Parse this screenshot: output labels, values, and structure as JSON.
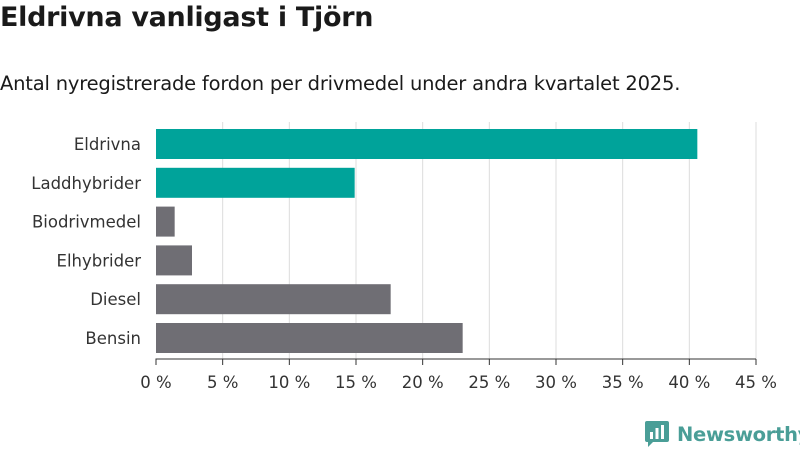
{
  "header": {
    "title": "Eldrivna vanligast i Tjörn",
    "subtitle": "Antal nyregistrerade fordon per drivmedel under andra kvartalet 2025."
  },
  "brand": {
    "name": "Newsworthy",
    "icon": "newsworthy-logo-icon",
    "color": "#4a9e97"
  },
  "colors": {
    "highlight": "#00a39a",
    "default": "#6f6e74",
    "grid": "#dcdcdc"
  },
  "chart_data": {
    "type": "bar",
    "orientation": "horizontal",
    "categories": [
      "Eldrivna",
      "Laddhybrider",
      "Biodrivmedel",
      "Elhybrider",
      "Diesel",
      "Bensin"
    ],
    "values": [
      40.6,
      14.9,
      1.4,
      2.7,
      17.6,
      23.0
    ],
    "highlighted": [
      true,
      true,
      false,
      false,
      false,
      false
    ],
    "xlim": [
      0,
      45
    ],
    "xticks": [
      0,
      5,
      10,
      15,
      20,
      25,
      30,
      35,
      40,
      45
    ],
    "xtick_labels": [
      "0 %",
      "5 %",
      "10 %",
      "15 %",
      "20 %",
      "25 %",
      "30 %",
      "35 %",
      "40 %",
      "45 %"
    ],
    "grid": true,
    "xlabel": "",
    "ylabel": ""
  }
}
